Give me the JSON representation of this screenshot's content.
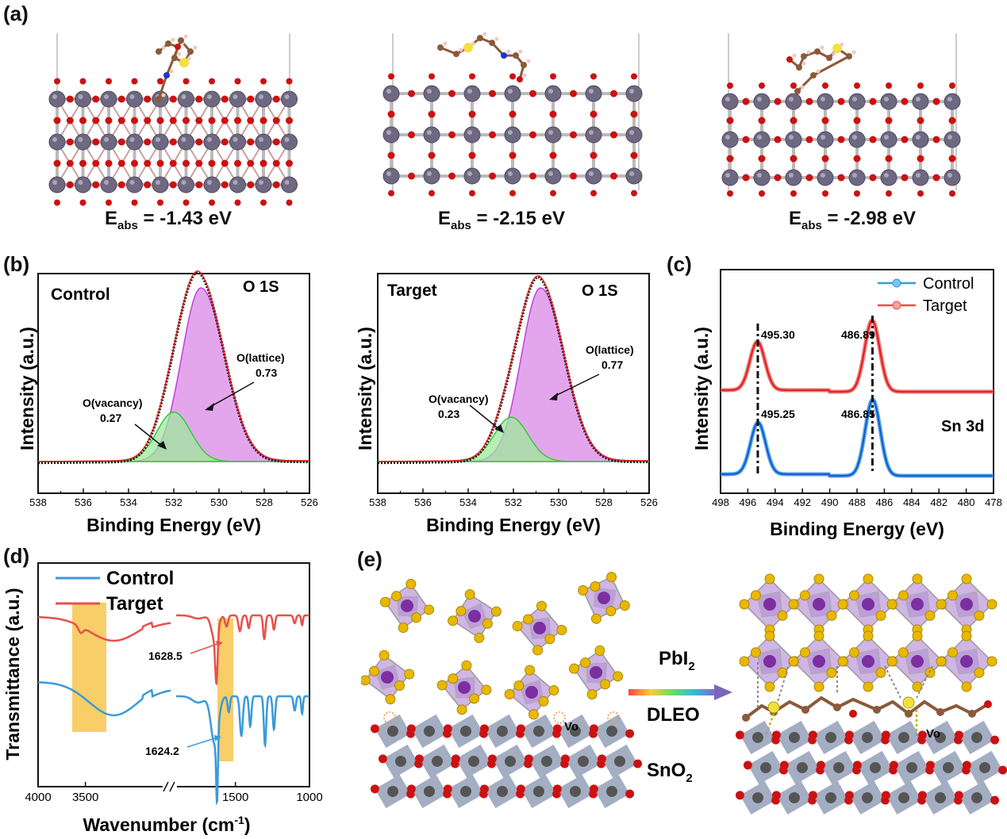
{
  "panels": {
    "a": {
      "label": "(a)",
      "energies": [
        {
          "prefix": "E",
          "sub": "abs",
          "value": " = -1.43 eV"
        },
        {
          "prefix": "E",
          "sub": "abs",
          "value": " = -2.15 eV"
        },
        {
          "prefix": "E",
          "sub": "abs",
          "value": " = -2.98 eV"
        }
      ]
    },
    "b": {
      "label": "(b)",
      "ylabel": "Intensity (a.u.)",
      "xlabel": "Binding Energy (eV)",
      "xticks": [
        "538",
        "536",
        "534",
        "532",
        "530",
        "528",
        "526"
      ],
      "left": {
        "sample": "Control",
        "orbital": "O 1S",
        "lattice_label": "O(lattice)",
        "lattice_value": "0.73",
        "vacancy_label": "O(vacancy)",
        "vacancy_value": "0.27"
      },
      "right": {
        "sample": "Target",
        "orbital": "O 1S",
        "lattice_label": "O(lattice)",
        "lattice_value": "0.77",
        "vacancy_label": "O(vacancy)",
        "vacancy_value": "0.23"
      }
    },
    "c": {
      "label": "(c)",
      "ylabel": "Intensity (a.u.)",
      "xlabel": "Binding Energy (eV)",
      "xticks": [
        "498",
        "496",
        "494",
        "492",
        "490",
        "488",
        "486",
        "484",
        "482",
        "480",
        "478"
      ],
      "legend": [
        "Control",
        "Target"
      ],
      "orbital": "Sn 3d",
      "peaks_target": [
        "495.30",
        "486.89"
      ],
      "peaks_control": [
        "495.25",
        "486.85"
      ]
    },
    "d": {
      "label": "(d)",
      "ylabel": "Transmittance (a.u.)",
      "xlabel": "Wavenumber (cm",
      "xlabel_sup": "-1",
      "xlabel_end": ")",
      "xticks": [
        "4000",
        "3500",
        "1500",
        "1000"
      ],
      "legend": [
        "Control",
        "Target"
      ],
      "ann_target": "1628.5",
      "ann_control": "1624.2"
    },
    "e": {
      "label": "(e)",
      "reagent1": "PbI",
      "reagent1_sub": "2",
      "reagent2": "DLEO",
      "substrate": "SnO",
      "substrate_sub": "2",
      "vacancy_left": "Vo",
      "vacancy_right": "Vo"
    }
  },
  "colors": {
    "control": "#3a9ad9",
    "target": "#e8504a",
    "lattice": "#cc55dd",
    "vacancy": "#6ed56e",
    "highlight": "#f5c242",
    "sn": "#6e6880",
    "o": "#cc1111"
  },
  "chart_data": [
    {
      "type": "line",
      "title": "",
      "panel": "b-left",
      "xlabel": "Binding Energy (eV)",
      "ylabel": "Intensity (a.u.)",
      "xlim": [
        538,
        526
      ],
      "series": [
        {
          "name": "O(lattice)",
          "peak_x": 530.8,
          "fraction": 0.73
        },
        {
          "name": "O(vacancy)",
          "peak_x": 532.0,
          "fraction": 0.27
        }
      ]
    },
    {
      "type": "line",
      "title": "",
      "panel": "b-right",
      "xlabel": "Binding Energy (eV)",
      "ylabel": "Intensity (a.u.)",
      "xlim": [
        538,
        526
      ],
      "series": [
        {
          "name": "O(lattice)",
          "peak_x": 530.8,
          "fraction": 0.77
        },
        {
          "name": "O(vacancy)",
          "peak_x": 532.1,
          "fraction": 0.23
        }
      ]
    },
    {
      "type": "line",
      "title": "",
      "panel": "c",
      "xlabel": "Binding Energy (eV)",
      "ylabel": "Intensity (a.u.)",
      "xlim": [
        498,
        478
      ],
      "series": [
        {
          "name": "Control",
          "peaks": [
            495.25,
            486.85
          ]
        },
        {
          "name": "Target",
          "peaks": [
            495.3,
            486.89
          ]
        }
      ]
    },
    {
      "type": "line",
      "title": "",
      "panel": "d",
      "xlabel": "Wavenumber (cm-1)",
      "ylabel": "Transmittance (a.u.)",
      "xlim": [
        4000,
        1000
      ],
      "series": [
        {
          "name": "Control",
          "marked_peak": 1624.2
        },
        {
          "name": "Target",
          "marked_peak": 1628.5
        }
      ]
    }
  ]
}
